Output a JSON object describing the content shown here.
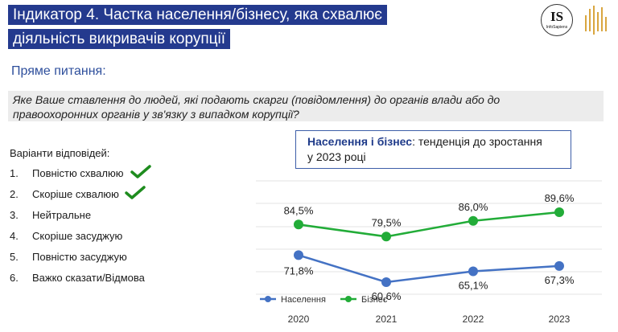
{
  "header": {
    "title_line1": "Індикатор 4. Частка населення/бізнесу, яка схвалює",
    "title_line2": "діяльність викривачів корупції",
    "logo_text": "IS",
    "logo_subtext": "InfoSapiens"
  },
  "subtitle": "Пряме питання:",
  "question": {
    "line1": "Яке Ваше ставлення до людей, які подають скарги (повідомлення) до органів влади або до",
    "line2": "правоохоронних органів у зв'язку з випадком корупції?"
  },
  "answers": {
    "title": "Варіанти відповідей:",
    "items": [
      {
        "num": "1.",
        "label": "Повністю схвалюю"
      },
      {
        "num": "2.",
        "label": "Скоріше схвалюю"
      },
      {
        "num": "3.",
        "label": "Нейтральне"
      },
      {
        "num": "4.",
        "label": "Скоріше засуджую"
      },
      {
        "num": "5.",
        "label": "Повністю засуджую"
      },
      {
        "num": "6.",
        "label": "Важко сказати/Відмова"
      }
    ]
  },
  "callout": {
    "bold": "Населення і бізнес",
    "rest_line1": ": тенденція до зростання",
    "line2": "у 2023 році"
  },
  "colors": {
    "title_bg": "#243a8e",
    "population": "#4472c4",
    "business": "#22ac38",
    "check": "#1e8c1e"
  },
  "chart_data": {
    "type": "line",
    "x": [
      "2020",
      "2021",
      "2022",
      "2023"
    ],
    "series": [
      {
        "name": "Населення",
        "values": [
          71.8,
          60.6,
          65.1,
          67.3
        ],
        "labels": [
          "71,8%",
          "60,6%",
          "65,1%",
          "67,3%"
        ],
        "color": "#4472c4"
      },
      {
        "name": "Бізнес",
        "values": [
          84.5,
          79.5,
          86.0,
          89.6
        ],
        "labels": [
          "84,5%",
          "79,5%",
          "86,0%",
          "89,6%"
        ],
        "color": "#22ac38"
      }
    ],
    "legend_position": "bottom-left",
    "grid": true
  }
}
